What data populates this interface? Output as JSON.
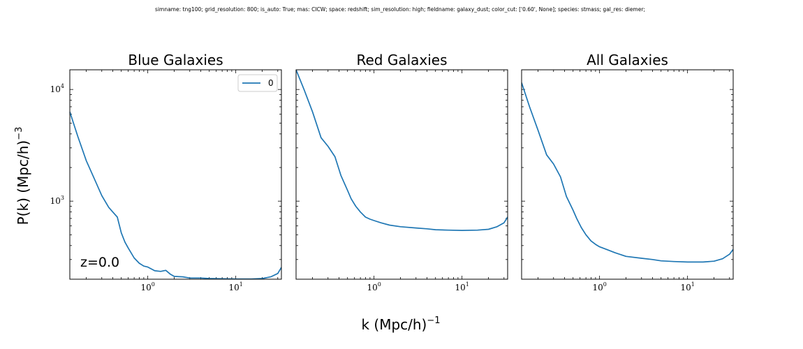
{
  "suptitle": "simname: tng100; grid_resolution: 800; is_auto: True; mas: CICW; space: redshift; sim_resolution: high; fieldname: galaxy_dust; color_cut: ['0.60', None]; species: stmass; gal_res: diemer;",
  "ylabel": "P(k) (Mpc/h)",
  "ylabel_exp": "−3",
  "xlabel": "k (Mpc/h)",
  "xlabel_exp": "−1",
  "chart_data": [
    {
      "type": "line",
      "title": "Blue Galaxies",
      "xscale": "log",
      "yscale": "log",
      "xlim": [
        0.13,
        33
      ],
      "ylim": [
        200,
        15000
      ],
      "xticks": [
        {
          "base": "10",
          "exp": "0",
          "value": 1
        },
        {
          "base": "10",
          "exp": "1",
          "value": 10
        }
      ],
      "yticks": [
        {
          "base": "10",
          "exp": "3",
          "value": 1000
        },
        {
          "base": "10",
          "exp": "4",
          "value": 10000
        }
      ],
      "legend": {
        "entries": [
          "0"
        ],
        "placement": "upper right"
      },
      "annotation": "z=0.0",
      "series": [
        {
          "name": "0",
          "color": "#1f77b4",
          "x": [
            0.13,
            0.16,
            0.2,
            0.25,
            0.3,
            0.36,
            0.4,
            0.45,
            0.5,
            0.55,
            0.6,
            0.7,
            0.8,
            0.9,
            1.0,
            1.2,
            1.4,
            1.6,
            1.8,
            2.0,
            2.5,
            3.0,
            4.0,
            5.0,
            7.0,
            10,
            15,
            20,
            25,
            30,
            33
          ],
          "y": [
            6300,
            3800,
            2300,
            1550,
            1120,
            880,
            800,
            720,
            520,
            430,
            380,
            310,
            278,
            262,
            257,
            238,
            235,
            240,
            222,
            212,
            210,
            205,
            205,
            203,
            202,
            201,
            201,
            203,
            210,
            225,
            255
          ]
        }
      ]
    },
    {
      "type": "line",
      "title": "Red Galaxies",
      "xscale": "log",
      "yscale": "log",
      "xlim": [
        0.13,
        33
      ],
      "ylim": [
        200,
        15000
      ],
      "xticks": [
        {
          "base": "10",
          "exp": "0",
          "value": 1
        },
        {
          "base": "10",
          "exp": "1",
          "value": 10
        }
      ],
      "yticks": [],
      "series": [
        {
          "name": "",
          "color": "#1f77b4",
          "x": [
            0.13,
            0.16,
            0.2,
            0.25,
            0.3,
            0.36,
            0.42,
            0.5,
            0.55,
            0.62,
            0.7,
            0.8,
            0.9,
            1.0,
            1.2,
            1.5,
            2.0,
            3.0,
            4.0,
            5.0,
            7.0,
            10,
            15,
            20,
            25,
            30,
            33
          ],
          "y": [
            15000,
            10000,
            6300,
            3700,
            3100,
            2500,
            1700,
            1250,
            1050,
            900,
            800,
            720,
            690,
            670,
            640,
            610,
            590,
            575,
            565,
            555,
            550,
            547,
            550,
            560,
            590,
            640,
            720
          ]
        }
      ]
    },
    {
      "type": "line",
      "title": "All Galaxies",
      "xscale": "log",
      "yscale": "log",
      "xlim": [
        0.13,
        33
      ],
      "ylim": [
        200,
        15000
      ],
      "xticks": [
        {
          "base": "10",
          "exp": "0",
          "value": 1
        },
        {
          "base": "10",
          "exp": "1",
          "value": 10
        }
      ],
      "yticks": [],
      "series": [
        {
          "name": "",
          "color": "#1f77b4",
          "x": [
            0.13,
            0.16,
            0.2,
            0.25,
            0.3,
            0.36,
            0.42,
            0.5,
            0.55,
            0.62,
            0.7,
            0.8,
            0.9,
            1.0,
            1.2,
            1.5,
            2.0,
            3.0,
            4.0,
            5.0,
            7.0,
            10,
            15,
            20,
            25,
            30,
            33
          ],
          "y": [
            11500,
            7000,
            4300,
            2600,
            2150,
            1650,
            1100,
            830,
            700,
            580,
            500,
            440,
            410,
            390,
            370,
            345,
            320,
            308,
            300,
            292,
            288,
            285,
            285,
            290,
            305,
            335,
            370
          ]
        }
      ]
    }
  ]
}
